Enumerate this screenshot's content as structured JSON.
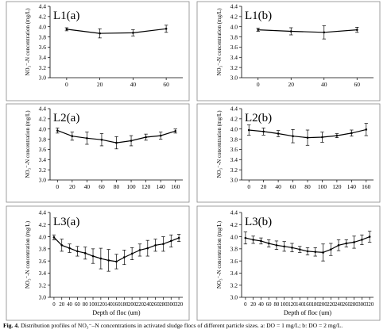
{
  "figure_caption": {
    "lead": "Fig. 4.",
    "text": "Distribution profiles of NO₃⁻–N concentrations in activated sludge flocs of different particle sizes. a: DO = 1 mg/L; b: DO = 2 mg/L."
  },
  "chart_data": [
    {
      "id": "L1a",
      "type": "line",
      "title": "L1(a)",
      "ylabel": "NO₃⁻-N concentration (mg/L)",
      "xlabel": "",
      "xlim": [
        -10,
        70
      ],
      "ylim": [
        3.0,
        4.4
      ],
      "xticks": [
        0,
        20,
        40,
        60
      ],
      "yticks": [
        "3.0",
        "3.2",
        "3.4",
        "3.6",
        "3.8",
        "4.0",
        "4.2",
        "4.4"
      ],
      "x": [
        0,
        20,
        40,
        60
      ],
      "values": [
        3.95,
        3.87,
        3.88,
        3.96
      ],
      "errors": [
        0.03,
        0.09,
        0.06,
        0.07
      ]
    },
    {
      "id": "L1b",
      "type": "line",
      "title": "L1(b)",
      "ylabel": "NO₃⁻-N concentration (mg/L)",
      "xlabel": "",
      "xlim": [
        -10,
        70
      ],
      "ylim": [
        3.0,
        4.4
      ],
      "xticks": [
        0,
        20,
        40,
        60
      ],
      "yticks": [
        "3.0",
        "3.2",
        "3.4",
        "3.6",
        "3.8",
        "4.0",
        "4.2",
        "4.4"
      ],
      "x": [
        0,
        20,
        40,
        60
      ],
      "values": [
        3.94,
        3.91,
        3.89,
        3.94
      ],
      "errors": [
        0.03,
        0.07,
        0.13,
        0.05
      ]
    },
    {
      "id": "L2a",
      "type": "line",
      "title": "L2(a)",
      "ylabel": "NO₃⁻-N concentration (mg/L)",
      "xlabel": "",
      "xlim": [
        -10,
        170
      ],
      "ylim": [
        3.0,
        4.4
      ],
      "xticks": [
        0,
        20,
        40,
        60,
        80,
        100,
        120,
        140,
        160
      ],
      "yticks": [
        "3.0",
        "3.2",
        "3.4",
        "3.6",
        "3.8",
        "4.0",
        "4.2",
        "4.4"
      ],
      "x": [
        0,
        20,
        40,
        60,
        80,
        100,
        120,
        140,
        160
      ],
      "values": [
        3.97,
        3.86,
        3.82,
        3.79,
        3.73,
        3.77,
        3.84,
        3.87,
        3.96
      ],
      "errors": [
        0.05,
        0.08,
        0.12,
        0.12,
        0.12,
        0.1,
        0.06,
        0.07,
        0.04
      ]
    },
    {
      "id": "L2b",
      "type": "line",
      "title": "L2(b)",
      "ylabel": "NO₃⁻-N concentration (mg/L)",
      "xlabel": "",
      "xlim": [
        -10,
        170
      ],
      "ylim": [
        3.0,
        4.4
      ],
      "xticks": [
        0,
        20,
        40,
        60,
        80,
        100,
        120,
        140,
        160
      ],
      "yticks": [
        "3.0",
        "3.2",
        "3.4",
        "3.6",
        "3.8",
        "4.0",
        "4.2",
        "4.4"
      ],
      "x": [
        0,
        20,
        40,
        60,
        80,
        100,
        120,
        140,
        160
      ],
      "values": [
        3.98,
        3.95,
        3.91,
        3.86,
        3.83,
        3.84,
        3.87,
        3.92,
        3.99
      ],
      "errors": [
        0.1,
        0.07,
        0.06,
        0.13,
        0.15,
        0.1,
        0.04,
        0.06,
        0.12
      ]
    },
    {
      "id": "L3a",
      "type": "line",
      "title": "L3(a)",
      "ylabel": "NO₃⁻-N concentration (mg/L)",
      "xlabel": "Depth of floc (um)",
      "xlim": [
        -10,
        330
      ],
      "ylim": [
        3.0,
        4.4
      ],
      "xticks": [
        0,
        20,
        40,
        60,
        80,
        100,
        120,
        140,
        160,
        180,
        200,
        220,
        240,
        260,
        280,
        300,
        320
      ],
      "yticks": [
        "3.0",
        "3.2",
        "3.4",
        "3.6",
        "3.8",
        "4.0",
        "4.2",
        "4.4"
      ],
      "x": [
        0,
        20,
        40,
        60,
        80,
        100,
        120,
        140,
        160,
        180,
        200,
        220,
        240,
        260,
        280,
        300,
        320
      ],
      "values": [
        3.99,
        3.86,
        3.81,
        3.76,
        3.73,
        3.68,
        3.64,
        3.61,
        3.59,
        3.66,
        3.72,
        3.78,
        3.81,
        3.86,
        3.88,
        3.93,
        3.98
      ],
      "errors": [
        0.04,
        0.1,
        0.07,
        0.08,
        0.1,
        0.12,
        0.17,
        0.18,
        0.12,
        0.12,
        0.1,
        0.1,
        0.13,
        0.1,
        0.12,
        0.1,
        0.06
      ]
    },
    {
      "id": "L3b",
      "type": "line",
      "title": "L3(b)",
      "ylabel": "NO₃⁻-N concentration (mg/L)",
      "xlabel": "Depth of floc (um)",
      "xlim": [
        -10,
        330
      ],
      "ylim": [
        3.0,
        4.4
      ],
      "xticks": [
        0,
        20,
        40,
        60,
        80,
        100,
        120,
        140,
        160,
        180,
        200,
        220,
        240,
        260,
        280,
        300,
        320
      ],
      "yticks": [
        "3.0",
        "3.2",
        "3.4",
        "3.6",
        "3.8",
        "4.0",
        "4.2",
        "4.4"
      ],
      "x": [
        0,
        20,
        40,
        60,
        80,
        100,
        120,
        140,
        160,
        180,
        200,
        220,
        240,
        260,
        280,
        300,
        320
      ],
      "values": [
        3.98,
        3.95,
        3.93,
        3.89,
        3.86,
        3.84,
        3.82,
        3.79,
        3.76,
        3.75,
        3.74,
        3.79,
        3.86,
        3.89,
        3.91,
        3.95,
        4.0
      ],
      "errors": [
        0.1,
        0.06,
        0.05,
        0.06,
        0.07,
        0.08,
        0.07,
        0.05,
        0.06,
        0.07,
        0.14,
        0.1,
        0.09,
        0.06,
        0.1,
        0.08,
        0.09
      ]
    }
  ]
}
